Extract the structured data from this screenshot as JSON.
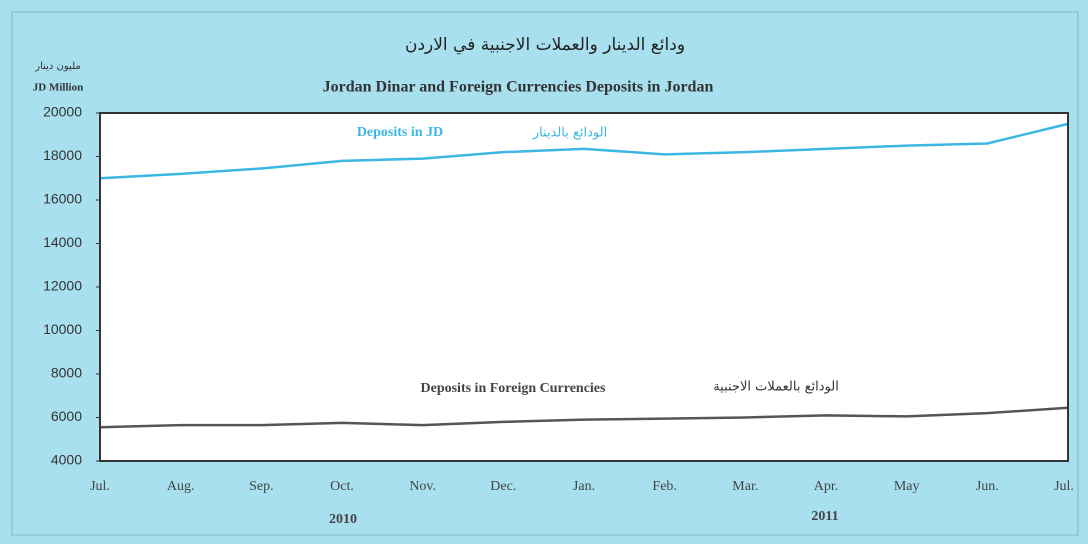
{
  "chart_data": {
    "type": "line",
    "title_ar": "ودائع الدينار والعملات الاجنبية في الاردن",
    "title": "Jordan Dinar and Foreign Currencies Deposits in Jordan",
    "y_label_ar": "مليون دينار",
    "y_label": "JD Million",
    "categories": [
      "Jul.",
      "Aug.",
      "Sep.",
      "Oct.",
      "Nov.",
      "Dec.",
      "Jan.",
      "Feb.",
      "Mar.",
      "Apr.",
      "May",
      "Jun.",
      "Jul."
    ],
    "years": [
      "2010",
      "2011"
    ],
    "series": [
      {
        "name": "Deposits in JD",
        "name_ar": "الودائع بالدينار",
        "color": "#3cb6e3",
        "values": [
          17000,
          17200,
          17450,
          17800,
          17900,
          18200,
          18350,
          18100,
          18200,
          18350,
          18500,
          18600,
          19500
        ]
      },
      {
        "name": "Deposits in Foreign Currencies",
        "name_ar": "الودائع بالعملات الاجنبية",
        "color": "#555555",
        "values": [
          5550,
          5650,
          5650,
          5750,
          5650,
          5800,
          5900,
          5950,
          6000,
          6100,
          6050,
          6200,
          6450
        ]
      }
    ],
    "ylim": [
      4000,
      20000
    ],
    "yticks": [
      4000,
      6000,
      8000,
      10000,
      12000,
      14000,
      16000,
      18000,
      20000
    ]
  }
}
